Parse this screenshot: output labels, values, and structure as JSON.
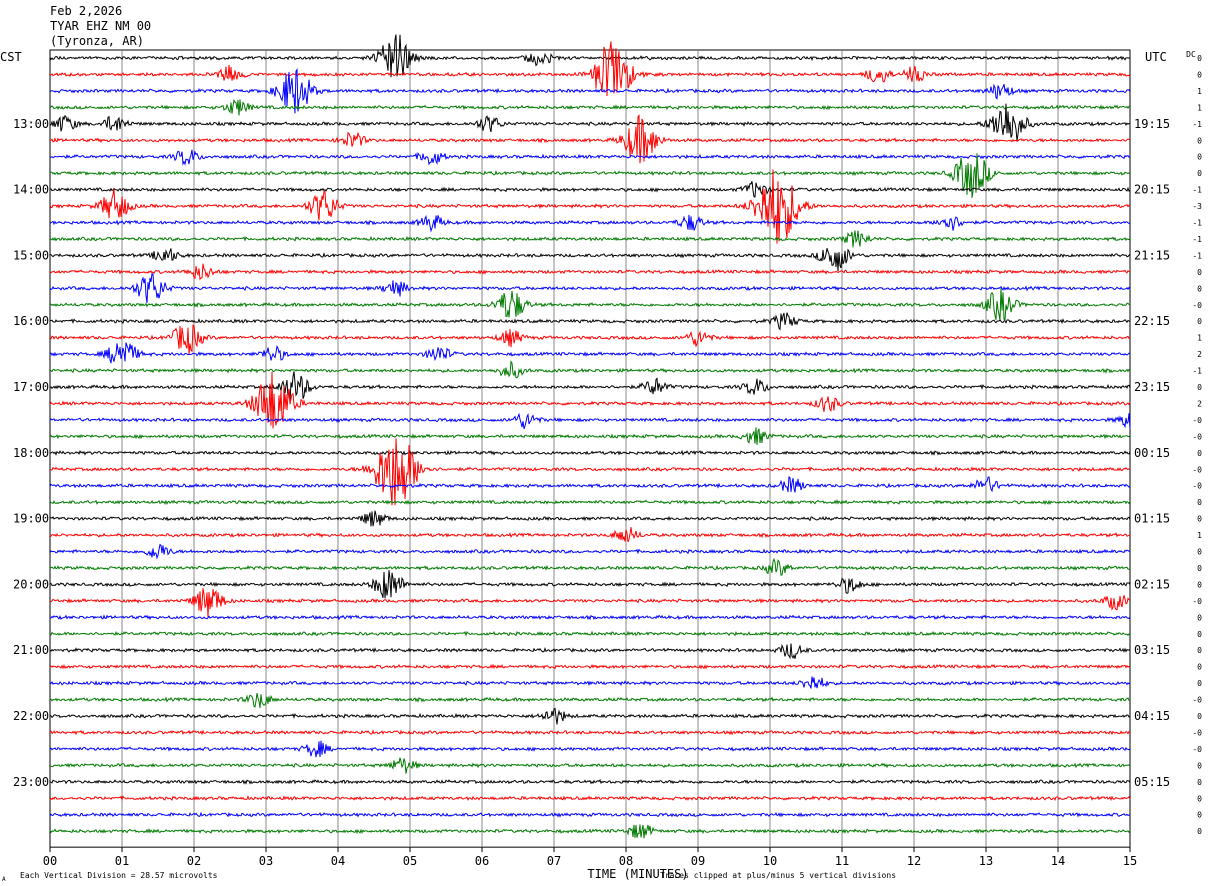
{
  "header": {
    "date": "Feb 2,2026",
    "station": "TYAR EHZ NM 00",
    "location": "(Tyronza, AR)"
  },
  "chart_data": {
    "type": "seismogram (helicorder)",
    "left_axis_label": "CST",
    "right_axis_label": "UTC",
    "dc_label": "DC",
    "xlabel": "TIME (MINUTES)",
    "x_range": [
      0,
      15
    ],
    "x_ticks": [
      "00",
      "01",
      "02",
      "03",
      "04",
      "05",
      "06",
      "07",
      "08",
      "09",
      "10",
      "11",
      "12",
      "13",
      "14",
      "15"
    ],
    "trace_colors": [
      "#000000",
      "#ff0000",
      "#0000ff",
      "#007a00"
    ],
    "trace_count": 48,
    "minutes_per_trace": 15,
    "cst_labels": [
      {
        "label": "13:00",
        "trace": 4
      },
      {
        "label": "14:00",
        "trace": 8
      },
      {
        "label": "15:00",
        "trace": 12
      },
      {
        "label": "16:00",
        "trace": 16
      },
      {
        "label": "17:00",
        "trace": 20
      },
      {
        "label": "18:00",
        "trace": 24
      },
      {
        "label": "19:00",
        "trace": 28
      },
      {
        "label": "20:00",
        "trace": 32
      },
      {
        "label": "21:00",
        "trace": 36
      },
      {
        "label": "22:00",
        "trace": 40
      },
      {
        "label": "23:00",
        "trace": 44
      }
    ],
    "utc_labels": [
      {
        "label": "19:15",
        "trace": 4
      },
      {
        "label": "20:15",
        "trace": 8
      },
      {
        "label": "21:15",
        "trace": 12
      },
      {
        "label": "22:15",
        "trace": 16
      },
      {
        "label": "23:15",
        "trace": 20
      },
      {
        "label": "00:15",
        "trace": 24
      },
      {
        "label": "01:15",
        "trace": 28
      },
      {
        "label": "02:15",
        "trace": 32
      },
      {
        "label": "03:15",
        "trace": 36
      },
      {
        "label": "04:15",
        "trace": 40
      },
      {
        "label": "05:15",
        "trace": 44
      }
    ],
    "dc_offsets": [
      "0",
      "0",
      "1",
      "1",
      "-1",
      "0",
      "0",
      "0",
      "-1",
      "-3",
      "-1",
      "-1",
      "-1",
      "0",
      "0",
      "-0",
      "0",
      "1",
      "2",
      "-1",
      "0",
      "2",
      "-0",
      "-0",
      "0",
      "-0",
      "-0",
      "0",
      "0",
      "1",
      "0",
      "0",
      "0",
      "-0",
      "0",
      "0",
      "0",
      "0",
      "0",
      "-0",
      "0",
      "-0",
      "-0",
      "0",
      "0",
      "0",
      "0",
      "0"
    ],
    "events": [
      {
        "trace": 0,
        "minute": 4.8,
        "amplitude": 3
      },
      {
        "trace": 0,
        "minute": 6.8,
        "amplitude": 1
      },
      {
        "trace": 1,
        "minute": 2.5,
        "amplitude": 1
      },
      {
        "trace": 1,
        "minute": 7.8,
        "amplitude": 4
      },
      {
        "trace": 1,
        "minute": 11.5,
        "amplitude": 1
      },
      {
        "trace": 1,
        "minute": 12.0,
        "amplitude": 1
      },
      {
        "trace": 2,
        "minute": 3.4,
        "amplitude": 3
      },
      {
        "trace": 2,
        "minute": 13.2,
        "amplitude": 1
      },
      {
        "trace": 3,
        "minute": 2.6,
        "amplitude": 1
      },
      {
        "trace": 4,
        "minute": 0.2,
        "amplitude": 1
      },
      {
        "trace": 4,
        "minute": 0.9,
        "amplitude": 1
      },
      {
        "trace": 4,
        "minute": 6.1,
        "amplitude": 1
      },
      {
        "trace": 4,
        "minute": 13.3,
        "amplitude": 3
      },
      {
        "trace": 5,
        "minute": 8.2,
        "amplitude": 3
      },
      {
        "trace": 5,
        "minute": 4.2,
        "amplitude": 1
      },
      {
        "trace": 6,
        "minute": 1.9,
        "amplitude": 1
      },
      {
        "trace": 6,
        "minute": 5.3,
        "amplitude": 1
      },
      {
        "trace": 7,
        "minute": 12.8,
        "amplitude": 3
      },
      {
        "trace": 8,
        "minute": 9.8,
        "amplitude": 1
      },
      {
        "trace": 9,
        "minute": 0.9,
        "amplitude": 2
      },
      {
        "trace": 9,
        "minute": 3.8,
        "amplitude": 2
      },
      {
        "trace": 9,
        "minute": 10.1,
        "amplitude": 5
      },
      {
        "trace": 10,
        "minute": 5.3,
        "amplitude": 1
      },
      {
        "trace": 10,
        "minute": 8.9,
        "amplitude": 1
      },
      {
        "trace": 10,
        "minute": 12.5,
        "amplitude": 1
      },
      {
        "trace": 11,
        "minute": 11.2,
        "amplitude": 1
      },
      {
        "trace": 12,
        "minute": 1.6,
        "amplitude": 1
      },
      {
        "trace": 12,
        "minute": 10.9,
        "amplitude": 2
      },
      {
        "trace": 13,
        "minute": 2.1,
        "amplitude": 1
      },
      {
        "trace": 14,
        "minute": 1.4,
        "amplitude": 2
      },
      {
        "trace": 14,
        "minute": 4.8,
        "amplitude": 1
      },
      {
        "trace": 15,
        "minute": 6.4,
        "amplitude": 2
      },
      {
        "trace": 15,
        "minute": 13.2,
        "amplitude": 2
      },
      {
        "trace": 16,
        "minute": 10.2,
        "amplitude": 1
      },
      {
        "trace": 17,
        "minute": 1.9,
        "amplitude": 2
      },
      {
        "trace": 17,
        "minute": 6.4,
        "amplitude": 1
      },
      {
        "trace": 17,
        "minute": 9.0,
        "amplitude": 1
      },
      {
        "trace": 18,
        "minute": 1.0,
        "amplitude": 2
      },
      {
        "trace": 18,
        "minute": 3.1,
        "amplitude": 1
      },
      {
        "trace": 18,
        "minute": 5.4,
        "amplitude": 1
      },
      {
        "trace": 19,
        "minute": 6.4,
        "amplitude": 1
      },
      {
        "trace": 20,
        "minute": 3.4,
        "amplitude": 2
      },
      {
        "trace": 20,
        "minute": 8.4,
        "amplitude": 1
      },
      {
        "trace": 20,
        "minute": 9.8,
        "amplitude": 1
      },
      {
        "trace": 21,
        "minute": 3.1,
        "amplitude": 4
      },
      {
        "trace": 21,
        "minute": 10.8,
        "amplitude": 1
      },
      {
        "trace": 22,
        "minute": 6.6,
        "amplitude": 1
      },
      {
        "trace": 22,
        "minute": 15.0,
        "amplitude": 1
      },
      {
        "trace": 23,
        "minute": 9.8,
        "amplitude": 1
      },
      {
        "trace": 25,
        "minute": 4.8,
        "amplitude": 5
      },
      {
        "trace": 26,
        "minute": 10.3,
        "amplitude": 1
      },
      {
        "trace": 26,
        "minute": 13.0,
        "amplitude": 1
      },
      {
        "trace": 28,
        "minute": 4.5,
        "amplitude": 1
      },
      {
        "trace": 29,
        "minute": 8.0,
        "amplitude": 1
      },
      {
        "trace": 30,
        "minute": 1.5,
        "amplitude": 1
      },
      {
        "trace": 31,
        "minute": 10.1,
        "amplitude": 1
      },
      {
        "trace": 32,
        "minute": 4.7,
        "amplitude": 2
      },
      {
        "trace": 32,
        "minute": 11.1,
        "amplitude": 1
      },
      {
        "trace": 33,
        "minute": 2.2,
        "amplitude": 2
      },
      {
        "trace": 33,
        "minute": 14.8,
        "amplitude": 1
      },
      {
        "trace": 36,
        "minute": 10.3,
        "amplitude": 1
      },
      {
        "trace": 38,
        "minute": 10.6,
        "amplitude": 1
      },
      {
        "trace": 39,
        "minute": 2.9,
        "amplitude": 1
      },
      {
        "trace": 40,
        "minute": 7.0,
        "amplitude": 1
      },
      {
        "trace": 42,
        "minute": 3.7,
        "amplitude": 1
      },
      {
        "trace": 43,
        "minute": 4.9,
        "amplitude": 1
      },
      {
        "trace": 47,
        "minute": 8.2,
        "amplitude": 1
      }
    ]
  },
  "footer": {
    "scale_note": "Each Vertical Division =   28.57 microvolts",
    "clip_note": "Traces clipped at plus/minus 5 vertical divisions",
    "corner_mark": "A"
  }
}
